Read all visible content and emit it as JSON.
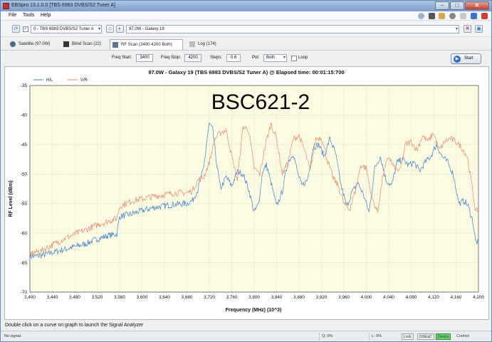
{
  "window": {
    "title": "EBSpro 13.1.0.0 [TBS 6983 DVBS/S2 Tuner A]"
  },
  "menu": [
    "File",
    "Tools",
    "Help"
  ],
  "toolbar": {
    "tuner": "0 - TBS 6983 DVBS/S2 Tuner A",
    "satellite": "97.0W - Galaxy 19"
  },
  "tabs": [
    {
      "label": "Satellite (97.0W)",
      "icon": "satellite-icon",
      "active": false
    },
    {
      "label": "Blind Scan (22)",
      "icon": "blind-scan-icon",
      "active": false
    },
    {
      "label": "RF Scan (3400-4200 Both)",
      "icon": "rf-scan-icon",
      "active": true
    },
    {
      "label": "Log (174)",
      "icon": "log-icon",
      "active": false
    }
  ],
  "params": {
    "freq_start_label": "Freq Start:",
    "freq_start": "3400",
    "freq_stop_label": "Freq Stop:",
    "freq_stop": "4200",
    "steps_label": "Steps:",
    "steps": "0.6",
    "pol_label": "Pol:",
    "pol": "Both",
    "loop_label": "Loop",
    "start_label": "Start"
  },
  "chart_data": {
    "type": "line",
    "title": "97.0W - Galaxy 19 (TBS 6983 DVBS/S2 Tuner A) @ Elapsed time: 00:01:15:700",
    "annotation": "BSC621-2",
    "xlabel": "Frequency (MHz) (10^3)",
    "ylabel": "RF Level (dBm)",
    "xlim": [
      3400,
      4200
    ],
    "ylim": [
      -70,
      -35
    ],
    "x_ticks": [
      "3,400",
      "3,440",
      "3,480",
      "3,520",
      "3,560",
      "3,600",
      "3,640",
      "3,680",
      "3,720",
      "3,760",
      "3,800",
      "3,840",
      "3,880",
      "3,920",
      "3,960",
      "4,000",
      "4,040",
      "4,080",
      "4,120",
      "4,160",
      "4,200"
    ],
    "y_ticks": [
      "-35",
      "-40",
      "-45",
      "-50",
      "-55",
      "-60",
      "-65",
      "-70"
    ],
    "legend_placement": "top-left",
    "grid": true,
    "series": [
      {
        "name": "H/L",
        "color": "#3c7fd0",
        "x": [
          3400,
          3420,
          3440,
          3460,
          3480,
          3500,
          3520,
          3540,
          3555,
          3560,
          3580,
          3600,
          3620,
          3640,
          3660,
          3680,
          3690,
          3700,
          3710,
          3716,
          3720,
          3726,
          3732,
          3740,
          3750,
          3760,
          3770,
          3780,
          3790,
          3800,
          3808,
          3815,
          3822,
          3830,
          3840,
          3850,
          3860,
          3870,
          3878,
          3885,
          3895,
          3905,
          3915,
          3925,
          3935,
          3945,
          3955,
          3965,
          3975,
          3985,
          3995,
          4005,
          4015,
          4025,
          4035,
          4045,
          4055,
          4065,
          4075,
          4085,
          4095,
          4105,
          4115,
          4125,
          4135,
          4145,
          4155,
          4165,
          4175,
          4182,
          4190,
          4195,
          4200
        ],
        "y": [
          -64.0,
          -63.8,
          -63.3,
          -62.8,
          -62.3,
          -61.8,
          -61.0,
          -60.4,
          -60.2,
          -57.2,
          -56.8,
          -56.2,
          -55.7,
          -55.4,
          -55.1,
          -55.0,
          -54.5,
          -52.5,
          -49.0,
          -44.0,
          -41.5,
          -42.5,
          -47.5,
          -52.5,
          -50.5,
          -52.0,
          -49.5,
          -50.0,
          -52.5,
          -56.5,
          -55.0,
          -49.5,
          -48.5,
          -51.5,
          -55.5,
          -53.0,
          -48.0,
          -46.5,
          -50.0,
          -52.0,
          -51.0,
          -45.5,
          -45.0,
          -47.0,
          -44.0,
          -46.5,
          -52.0,
          -55.5,
          -53.0,
          -51.5,
          -53.5,
          -56.5,
          -49.0,
          -47.0,
          -51.0,
          -52.0,
          -48.0,
          -47.5,
          -48.5,
          -48.0,
          -49.5,
          -48.0,
          -47.0,
          -45.0,
          -47.0,
          -48.0,
          -50.0,
          -55.0,
          -54.5,
          -55.5,
          -58.0,
          -61.5,
          -61.5
        ]
      },
      {
        "name": "V/R",
        "color": "#e08a72",
        "x": [
          3400,
          3420,
          3440,
          3460,
          3480,
          3500,
          3520,
          3540,
          3555,
          3560,
          3580,
          3600,
          3620,
          3640,
          3660,
          3680,
          3690,
          3700,
          3710,
          3720,
          3730,
          3740,
          3750,
          3760,
          3770,
          3780,
          3790,
          3800,
          3810,
          3820,
          3830,
          3840,
          3850,
          3860,
          3870,
          3880,
          3890,
          3900,
          3910,
          3920,
          3930,
          3940,
          3950,
          3960,
          3970,
          3980,
          3990,
          4000,
          4010,
          4020,
          4030,
          4040,
          4050,
          4060,
          4070,
          4080,
          4090,
          4100,
          4110,
          4120,
          4130,
          4140,
          4150,
          4160,
          4170,
          4180,
          4190,
          4195,
          4200
        ],
        "y": [
          -63.5,
          -63.0,
          -62.0,
          -61.0,
          -60.2,
          -59.4,
          -58.6,
          -58.0,
          -57.5,
          -55.5,
          -54.6,
          -54.2,
          -53.8,
          -53.5,
          -53.2,
          -53.2,
          -52.8,
          -51.0,
          -50.5,
          -48.0,
          -44.0,
          -43.0,
          -42.5,
          -47.0,
          -51.0,
          -42.0,
          -42.5,
          -49.0,
          -50.0,
          -45.0,
          -41.5,
          -44.0,
          -50.0,
          -48.0,
          -44.0,
          -43.5,
          -46.0,
          -49.5,
          -44.0,
          -43.8,
          -47.5,
          -50.5,
          -52.0,
          -55.0,
          -56.0,
          -53.0,
          -48.5,
          -49.0,
          -54.0,
          -56.5,
          -50.0,
          -47.0,
          -49.0,
          -49.5,
          -45.0,
          -44.5,
          -46.0,
          -43.5,
          -44.5,
          -43.0,
          -46.0,
          -44.5,
          -44.0,
          -44.5,
          -45.5,
          -47.0,
          -53.0,
          -56.5,
          -56.0
        ]
      }
    ]
  },
  "hint": "Double click on a curve on graph to launch the Signal Analyzer",
  "status": {
    "signal": "No signal.",
    "q": "Q: 0%",
    "l": "L: 0%",
    "lock": "Lock",
    "diseqc": "DiSEqC",
    "device": "Device",
    "control": "Control"
  }
}
